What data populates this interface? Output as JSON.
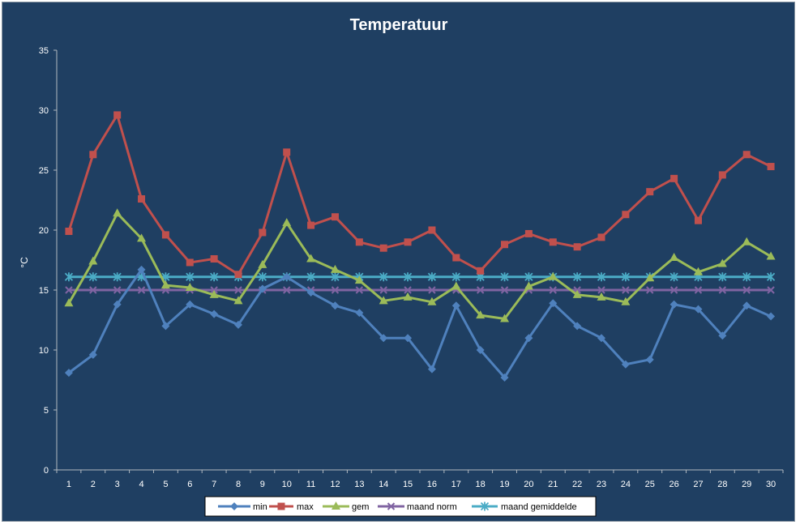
{
  "chart_data": {
    "type": "line",
    "title": "Temperatuur",
    "xlabel": "",
    "ylabel": "°C",
    "ylim": [
      0,
      35
    ],
    "yticks": [
      0,
      5,
      10,
      15,
      20,
      25,
      30,
      35
    ],
    "x": [
      1,
      2,
      3,
      4,
      5,
      6,
      7,
      8,
      9,
      10,
      11,
      12,
      13,
      14,
      15,
      16,
      17,
      18,
      19,
      20,
      21,
      22,
      23,
      24,
      25,
      26,
      27,
      28,
      29,
      30
    ],
    "grid": false,
    "legend_position": "bottom",
    "series": [
      {
        "name": "min",
        "color": "#4f81bd",
        "marker": "diamond",
        "values": [
          8.1,
          9.6,
          13.8,
          16.7,
          12.0,
          13.8,
          13.0,
          12.1,
          15.1,
          16.1,
          14.8,
          13.7,
          13.1,
          11.0,
          11.0,
          8.4,
          13.7,
          10.0,
          7.7,
          11.0,
          13.9,
          12.0,
          11.0,
          8.8,
          9.2,
          13.8,
          13.4,
          11.2,
          13.7,
          12.8
        ]
      },
      {
        "name": "max",
        "color": "#c0504d",
        "marker": "square",
        "values": [
          19.9,
          26.3,
          29.6,
          22.6,
          19.6,
          17.3,
          17.6,
          16.3,
          19.8,
          26.5,
          20.4,
          21.1,
          19.0,
          18.5,
          19.0,
          20.0,
          17.7,
          16.6,
          18.8,
          19.7,
          19.0,
          18.6,
          19.4,
          21.3,
          23.2,
          24.3,
          20.8,
          24.6,
          26.3,
          25.3
        ]
      },
      {
        "name": "gem",
        "color": "#9bbb59",
        "marker": "triangle",
        "values": [
          13.9,
          17.4,
          21.4,
          19.3,
          15.4,
          15.2,
          14.6,
          14.1,
          17.1,
          20.6,
          17.6,
          16.7,
          15.8,
          14.1,
          14.4,
          14.0,
          15.3,
          12.9,
          12.6,
          15.3,
          16.1,
          14.6,
          14.4,
          14.0,
          16.0,
          17.7,
          16.5,
          17.2,
          19.0,
          17.8
        ]
      },
      {
        "name": "maand norm",
        "color": "#8064a2",
        "marker": "x",
        "values": [
          15,
          15,
          15,
          15,
          15,
          15,
          15,
          15,
          15,
          15,
          15,
          15,
          15,
          15,
          15,
          15,
          15,
          15,
          15,
          15,
          15,
          15,
          15,
          15,
          15,
          15,
          15,
          15,
          15,
          15
        ]
      },
      {
        "name": "maand gemiddelde",
        "color": "#4bacc6",
        "marker": "star",
        "values": [
          16.1,
          16.1,
          16.1,
          16.1,
          16.1,
          16.1,
          16.1,
          16.1,
          16.1,
          16.1,
          16.1,
          16.1,
          16.1,
          16.1,
          16.1,
          16.1,
          16.1,
          16.1,
          16.1,
          16.1,
          16.1,
          16.1,
          16.1,
          16.1,
          16.1,
          16.1,
          16.1,
          16.1,
          16.1,
          16.1
        ]
      }
    ]
  }
}
